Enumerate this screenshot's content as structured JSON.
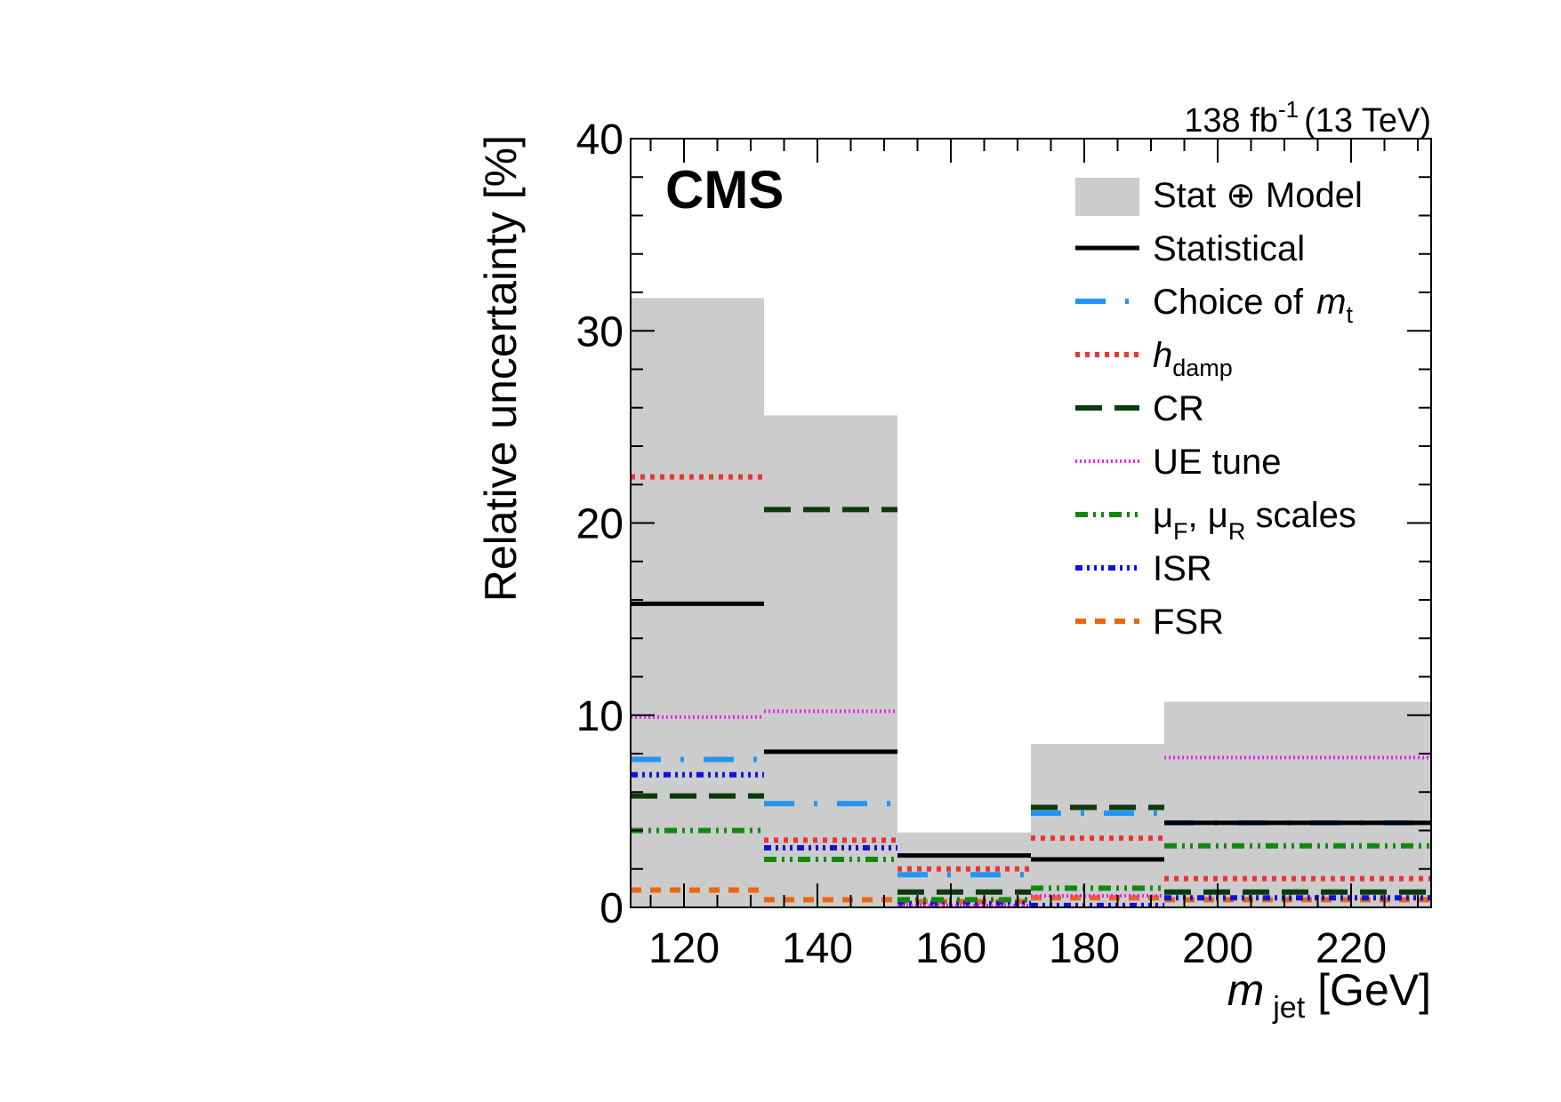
{
  "chart_data": {
    "type": "step",
    "experiment_label": "CMS",
    "lumi_label": {
      "value": "138 fb",
      "exp": "-1",
      "energy": "(13 TeV)"
    },
    "xlabel": {
      "symbol": "m",
      "sub": "jet",
      "unit": "[GeV]"
    },
    "ylabel": "Relative uncertainty [%]",
    "xlim": [
      112,
      232
    ],
    "ylim": [
      0,
      40
    ],
    "x_ticks": [
      120,
      140,
      160,
      180,
      200,
      220
    ],
    "y_ticks": [
      0,
      10,
      20,
      30,
      40
    ],
    "bin_edges": [
      112,
      132,
      152,
      172,
      192,
      232
    ],
    "band": {
      "name": "Stat ⊕ Model",
      "color": "#cccccc",
      "values": [
        31.7,
        25.6,
        3.9,
        8.5,
        10.7
      ]
    },
    "series": [
      {
        "name": "Statistical",
        "color": "#000000",
        "dash": "solid",
        "values": [
          15.8,
          8.1,
          2.7,
          2.5,
          4.4
        ]
      },
      {
        "name_prefix": "Choice of ",
        "name_symbol": "m",
        "name_sub": "t",
        "color": "#2196f3",
        "dash": "longdash-dot",
        "values": [
          7.7,
          5.4,
          1.7,
          4.9,
          4.4
        ]
      },
      {
        "name_symbol": "h",
        "name_sub": "damp",
        "color": "#ee3333",
        "dash": "dotted",
        "values": [
          22.4,
          3.5,
          2.0,
          3.6,
          1.5
        ]
      },
      {
        "name": "CR",
        "color": "#0b3b0b",
        "dash": "dashed",
        "values": [
          5.8,
          20.7,
          0.8,
          5.2,
          0.8
        ]
      },
      {
        "name": "UE tune",
        "color": "#ee22ee",
        "dash": "fine-dotted",
        "values": [
          9.9,
          10.2,
          0.1,
          0.6,
          7.8
        ]
      },
      {
        "name": "μ",
        "name_sub": "F",
        "name_mid": ", μ",
        "name_sub2": "R",
        "name_suffix": " scales",
        "color": "#118811",
        "dash": "dash-dot-dot",
        "values": [
          4.0,
          2.5,
          0.4,
          1.0,
          3.2
        ]
      },
      {
        "name": "ISR",
        "color": "#1111dd",
        "dash": "dash-dot-dot-dot",
        "values": [
          6.9,
          3.1,
          0.2,
          0.1,
          0.5
        ]
      },
      {
        "name": "FSR",
        "color": "#ee6611",
        "dash": "short-dashed",
        "values": [
          0.9,
          0.4,
          0.3,
          0.5,
          0.4
        ]
      }
    ]
  }
}
